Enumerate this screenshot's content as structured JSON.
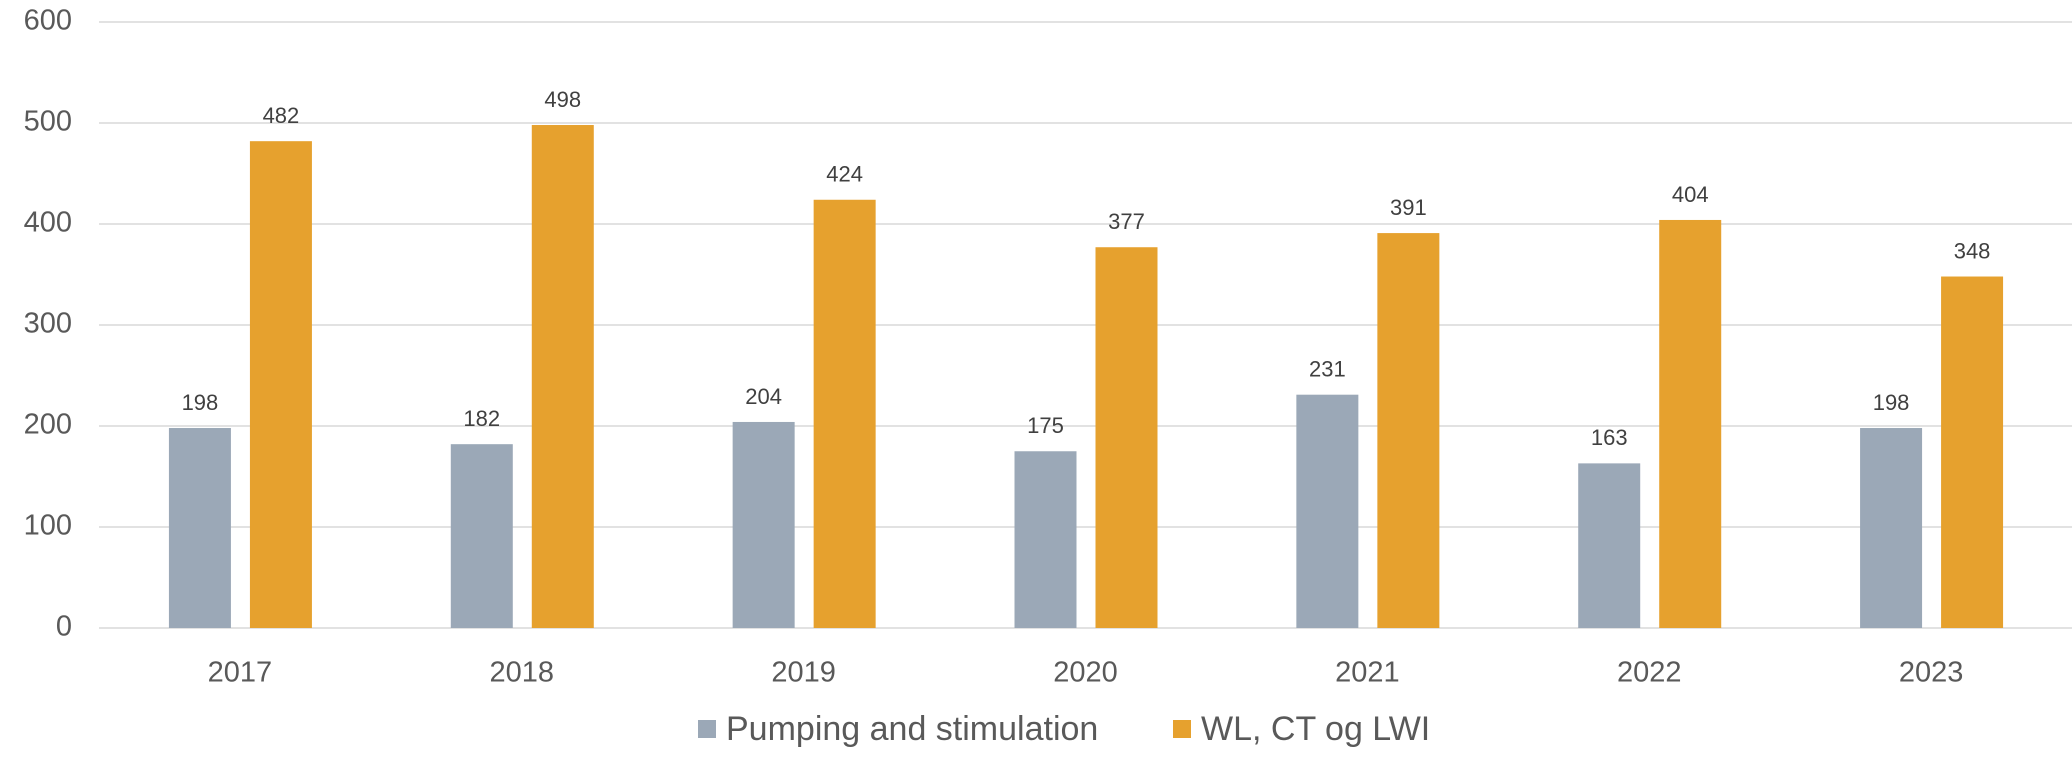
{
  "chart_data": {
    "type": "bar",
    "categories": [
      "2017",
      "2018",
      "2019",
      "2020",
      "2021",
      "2022",
      "2023"
    ],
    "series": [
      {
        "name": "Pumping and stimulation",
        "color": "#9ba8b7",
        "values": [
          198,
          182,
          204,
          175,
          231,
          163,
          198
        ]
      },
      {
        "name": "WL, CT og LWI",
        "color": "#e6a12e",
        "values": [
          482,
          498,
          424,
          377,
          391,
          404,
          348
        ]
      }
    ],
    "ylim": [
      0,
      600
    ],
    "yticks": [
      0,
      100,
      200,
      300,
      400,
      500,
      600
    ],
    "grid": true,
    "legend": "bottom"
  }
}
